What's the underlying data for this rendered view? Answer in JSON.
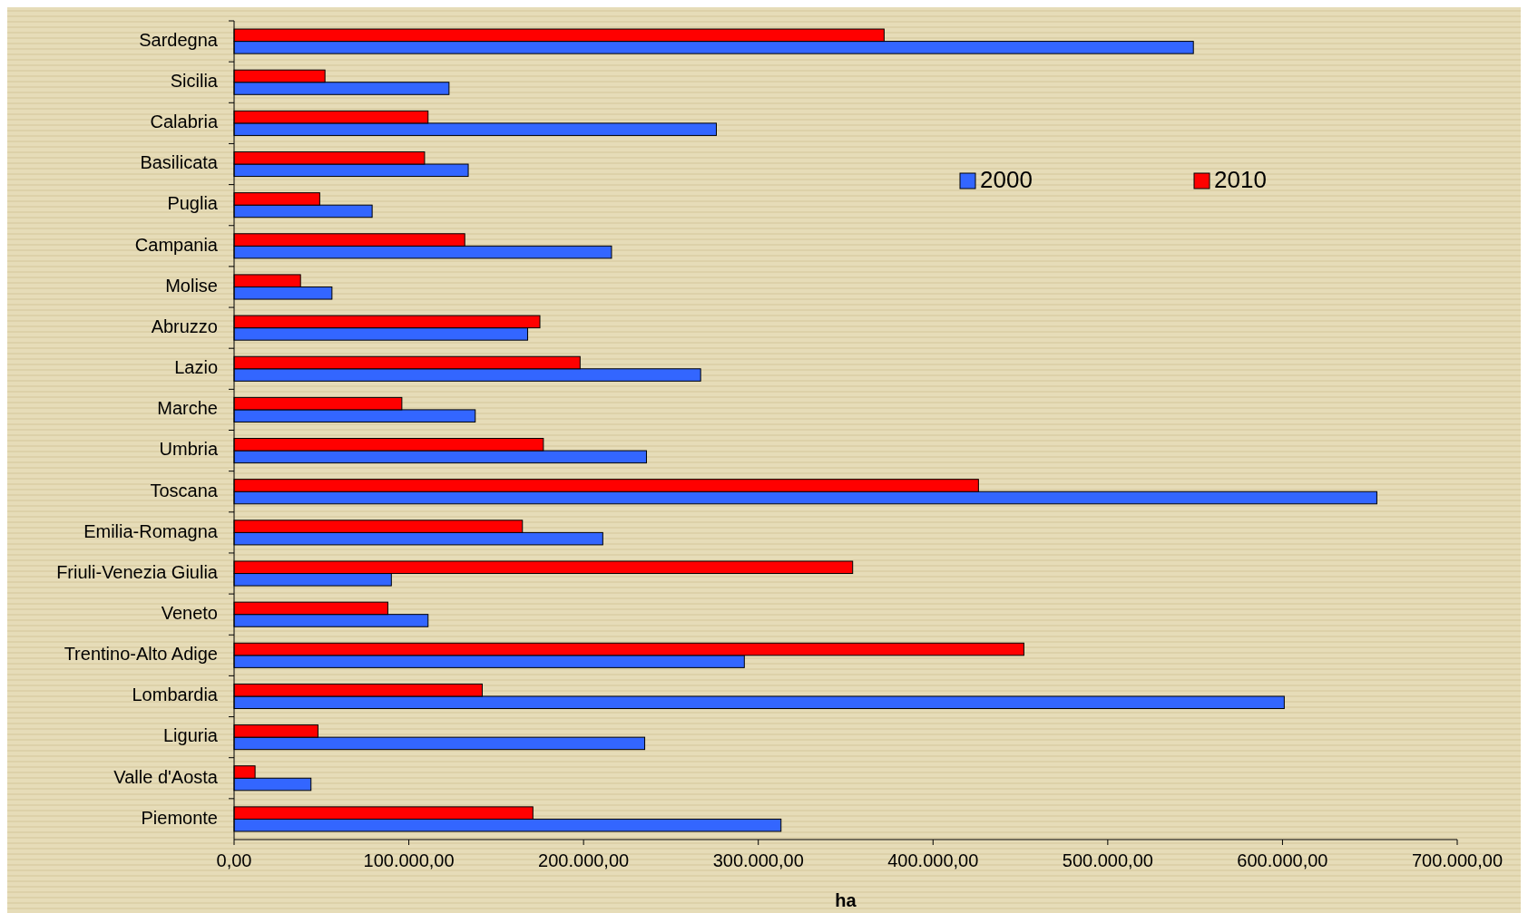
{
  "chart_data": {
    "type": "bar",
    "orientation": "horizontal",
    "xlabel": "ha",
    "categories": [
      "Sardegna",
      "Sicilia",
      "Calabria",
      "Basilicata",
      "Puglia",
      "Campania",
      "Molise",
      "Abruzzo",
      "Lazio",
      "Marche",
      "Umbria",
      "Toscana",
      "Emilia-Romagna",
      "Friuli-Venezia Giulia",
      "Veneto",
      "Trentino-Alto Adige",
      "Lombardia",
      "Liguria",
      "Valle d'Aosta",
      "Piemonte"
    ],
    "series": [
      {
        "name": "2000",
        "color": "#3366ff",
        "values": [
          549000,
          123000,
          276000,
          134000,
          79000,
          216000,
          56000,
          168000,
          267000,
          138000,
          236000,
          654000,
          211000,
          90000,
          111000,
          292000,
          601000,
          235000,
          44000,
          313000
        ]
      },
      {
        "name": "2010",
        "color": "#ff0000",
        "values": [
          372000,
          52000,
          111000,
          109000,
          49000,
          132000,
          38000,
          175000,
          198000,
          96000,
          177000,
          426000,
          165000,
          354000,
          88000,
          452000,
          142000,
          48000,
          12000,
          171000
        ]
      }
    ],
    "xlim": [
      0,
      700000
    ],
    "xticks": [
      {
        "value": 0,
        "label": "0,00"
      },
      {
        "value": 100000,
        "label": "100.000,00"
      },
      {
        "value": 200000,
        "label": "200.000,00"
      },
      {
        "value": 300000,
        "label": "300.000,00"
      },
      {
        "value": 400000,
        "label": "400.000,00"
      },
      {
        "value": 500000,
        "label": "500.000,00"
      },
      {
        "value": 600000,
        "label": "600.000,00"
      },
      {
        "value": 700000,
        "label": "700.000,00"
      }
    ],
    "legend": "top right",
    "grid": false
  }
}
